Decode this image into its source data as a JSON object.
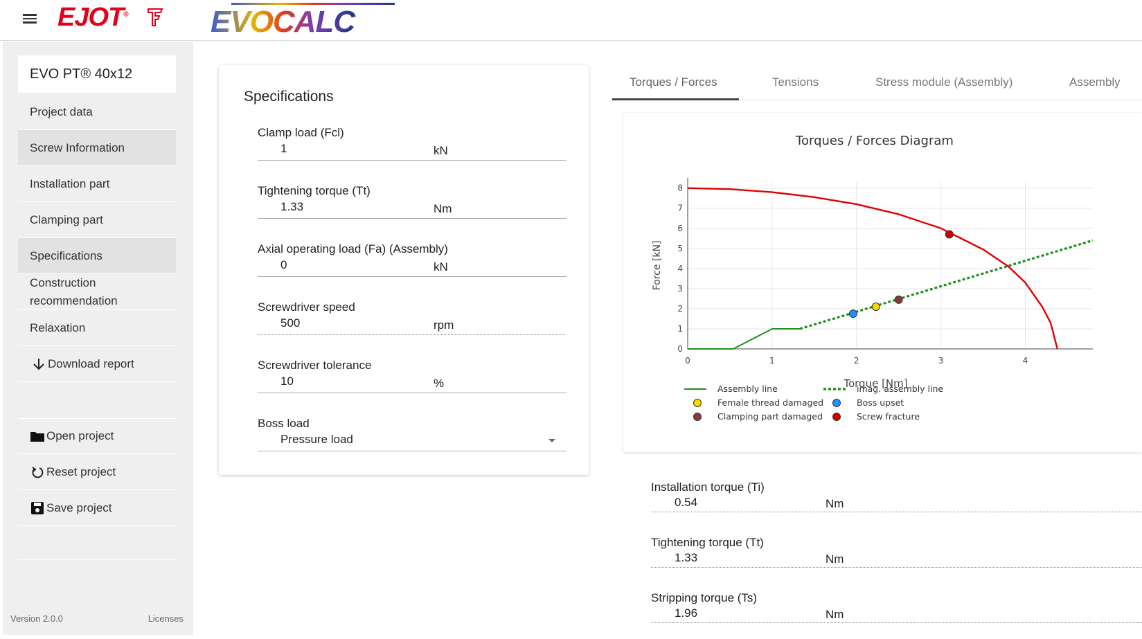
{
  "header": {
    "brand": "EJOT",
    "product_logo": "EVOCALC"
  },
  "sidebar": {
    "product": "EVO PT® 40x12",
    "items": [
      {
        "label": "Project data"
      },
      {
        "label": "Screw Information"
      },
      {
        "label": "Installation part"
      },
      {
        "label": "Clamping part"
      },
      {
        "label": "Specifications"
      },
      {
        "label": "Construction recommendation"
      },
      {
        "label": "Relaxation"
      },
      {
        "label": "Download report"
      }
    ],
    "actions": [
      {
        "label": "Open project"
      },
      {
        "label": "Reset project"
      },
      {
        "label": "Save project"
      }
    ],
    "version": "Version 2.0.0",
    "licenses": "Licenses"
  },
  "specs": {
    "title": "Specifications",
    "fields": [
      {
        "label": "Clamp load (Fcl)",
        "value": "1",
        "unit": "kN"
      },
      {
        "label": "Tightening torque (Tt)",
        "value": "1.33",
        "unit": "Nm"
      },
      {
        "label": "Axial operating load (Fa) (Assembly)",
        "value": "0",
        "unit": "kN"
      },
      {
        "label": "Screwdriver speed",
        "value": "500",
        "unit": "rpm"
      },
      {
        "label": "Screwdriver tolerance",
        "value": "10",
        "unit": "%"
      },
      {
        "label": "Boss load",
        "value": "Pressure load",
        "unit": ""
      }
    ]
  },
  "tabs": [
    {
      "label": "Torques / Forces"
    },
    {
      "label": "Tensions"
    },
    {
      "label": "Stress module (Assembly)"
    },
    {
      "label": "Assembly"
    }
  ],
  "chart_data": {
    "type": "line",
    "title": "Torques / Forces Diagram",
    "xlabel": "Torque [Nm]",
    "ylabel": "Force [kN]",
    "xlim": [
      0,
      4.8
    ],
    "ylim": [
      0,
      8.3
    ],
    "xticks": [
      0,
      1,
      2,
      3,
      4
    ],
    "yticks": [
      0,
      1,
      2,
      3,
      4,
      5,
      6,
      7,
      8
    ],
    "grid": true,
    "legend_position": "bottom",
    "series": [
      {
        "name": "Assembly line",
        "style": "solid",
        "color": "#1f8f1f",
        "x": [
          0,
          0.54,
          1.0,
          1.33
        ],
        "y": [
          0,
          0,
          1,
          1
        ]
      },
      {
        "name": "imag. assembly line",
        "style": "dotted",
        "color": "#1f8f1f",
        "x": [
          1.33,
          4.8
        ],
        "y": [
          1,
          5.4
        ]
      },
      {
        "name": "Screw fracture curve",
        "style": "solid",
        "color": "#e00000",
        "x": [
          0,
          0.5,
          1.0,
          1.5,
          2.0,
          2.5,
          3.0,
          3.5,
          3.8,
          4.0,
          4.2,
          4.3,
          4.38
        ],
        "y": [
          8.0,
          7.95,
          7.8,
          7.55,
          7.2,
          6.7,
          6.0,
          4.95,
          4.1,
          3.3,
          2.1,
          1.3,
          0
        ]
      }
    ],
    "points": [
      {
        "name": "Female thread damaged",
        "x": 2.23,
        "y": 2.1,
        "color": "#ffd400"
      },
      {
        "name": "Boss upset",
        "x": 1.96,
        "y": 1.75,
        "color": "#1e90ff"
      },
      {
        "name": "Clamping part damaged",
        "x": 2.5,
        "y": 2.45,
        "color": "#8b3a3a"
      },
      {
        "name": "Screw fracture",
        "x": 3.1,
        "y": 5.7,
        "color": "#d40000"
      }
    ],
    "legend": [
      {
        "name": "Assembly line",
        "kind": "line"
      },
      {
        "name": "imag. assembly line",
        "kind": "dotted"
      },
      {
        "name": "Female thread damaged",
        "kind": "dot",
        "color": "#ffd400"
      },
      {
        "name": "Boss upset",
        "kind": "dot",
        "color": "#1e90ff"
      },
      {
        "name": "Clamping part damaged",
        "kind": "dot",
        "color": "#8b3a3a"
      },
      {
        "name": "Screw fracture",
        "kind": "dot",
        "color": "#d40000"
      }
    ]
  },
  "results": [
    {
      "label": "Installation torque (Ti)",
      "value": "0.54",
      "unit": "Nm"
    },
    {
      "label": "Tightening torque (Tt)",
      "value": "1.33",
      "unit": "Nm"
    },
    {
      "label": "Stripping torque (Ts)",
      "value": "1.96",
      "unit": "Nm"
    }
  ]
}
